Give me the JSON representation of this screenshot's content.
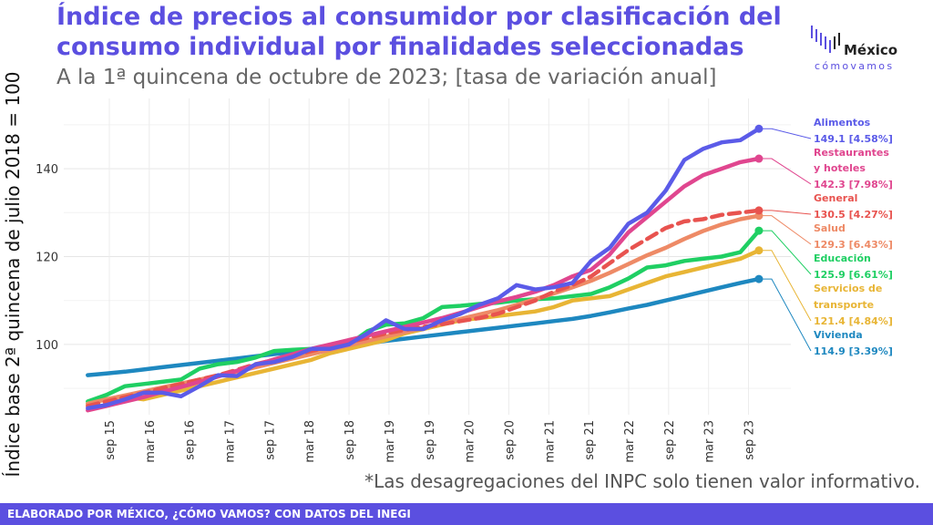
{
  "title": "Índice de precios al consumidor por clasificación del consumo individual por finalidades seleccionadas",
  "subtitle": "A la 1ª quincena de octubre de 2023; [tasa de variación anual]",
  "footnote": "*Las desagregaciones del INPC solo tienen valor informativo.",
  "footer": "ELABORADO POR MÉXICO, ¿CÓMO VAMOS? CON DATOS DEL INEGI",
  "logo": {
    "name": "México",
    "sub": "cómovamos",
    "icon": "bars-logo-icon",
    "colors": [
      "#5B4FE0",
      "#222222"
    ]
  },
  "chart_data": {
    "type": "line",
    "ylabel": "Índice base 2ª quincena de julio 2018 = 100",
    "xlabel": "",
    "x_start": 2015.4,
    "x_end": 2023.8,
    "xlim": [
      2015.1,
      2024.2
    ],
    "ylim": [
      84,
      156
    ],
    "yticks": [
      100,
      120,
      140
    ],
    "xticks": [
      {
        "label": "sep 15",
        "x": 2015.67
      },
      {
        "label": "mar 16",
        "x": 2016.17
      },
      {
        "label": "sep 16",
        "x": 2016.67
      },
      {
        "label": "mar 17",
        "x": 2017.17
      },
      {
        "label": "sep 17",
        "x": 2017.67
      },
      {
        "label": "mar 18",
        "x": 2018.17
      },
      {
        "label": "sep 18",
        "x": 2018.67
      },
      {
        "label": "mar 19",
        "x": 2019.17
      },
      {
        "label": "sep 19",
        "x": 2019.67
      },
      {
        "label": "mar 20",
        "x": 2020.17
      },
      {
        "label": "sep 20",
        "x": 2020.67
      },
      {
        "label": "mar 21",
        "x": 2021.17
      },
      {
        "label": "sep 21",
        "x": 2021.67
      },
      {
        "label": "mar 22",
        "x": 2022.17
      },
      {
        "label": "sep 22",
        "x": 2022.67
      },
      {
        "label": "mar 23",
        "x": 2023.17
      },
      {
        "label": "sep 23",
        "x": 2023.67
      }
    ],
    "grid": true,
    "legend": "direct-labels-right",
    "series": [
      {
        "name": "Alimentos",
        "value_label": "149.1 [4.58%]",
        "color": "#5B5BE8",
        "dashed": false,
        "values": [
          85.5,
          86.2,
          87.5,
          89.0,
          89.0,
          88.2,
          90.5,
          93.0,
          92.8,
          95.5,
          96.0,
          97.2,
          99.0,
          99.0,
          100.0,
          102.5,
          105.5,
          103.5,
          103.5,
          105.5,
          107.0,
          109.0,
          110.5,
          113.5,
          112.5,
          113.0,
          114.0,
          119.0,
          122.0,
          127.5,
          130.0,
          135.0,
          142.0,
          144.5,
          146.0,
          146.5,
          149.1
        ]
      },
      {
        "name": "Restaurantes y hoteles",
        "value_label": "142.3 [7.98%]",
        "color": "#E0468F",
        "dashed": false,
        "values": [
          85.0,
          86.0,
          87.0,
          88.0,
          89.2,
          90.3,
          91.5,
          92.7,
          94.0,
          95.3,
          96.6,
          97.8,
          99.0,
          100.0,
          101.0,
          102.0,
          103.0,
          104.0,
          105.0,
          106.0,
          107.2,
          108.5,
          109.8,
          110.8,
          112.0,
          113.5,
          115.5,
          117.0,
          120.5,
          125.5,
          129.0,
          132.5,
          136.0,
          138.5,
          140.0,
          141.5,
          142.3
        ]
      },
      {
        "name": "General",
        "value_label": "130.5 [4.27%]",
        "color": "#E8534F",
        "dashed": true,
        "values": [
          86.0,
          87.0,
          88.0,
          89.0,
          90.0,
          91.0,
          92.0,
          93.0,
          94.2,
          95.5,
          96.5,
          97.5,
          98.5,
          99.5,
          100.5,
          101.5,
          102.5,
          103.3,
          104.0,
          104.6,
          105.3,
          106.0,
          107.0,
          108.5,
          110.0,
          112.0,
          113.5,
          115.5,
          118.5,
          121.5,
          124.0,
          126.5,
          128.0,
          128.5,
          129.5,
          130.0,
          130.5
        ]
      },
      {
        "name": "Salud",
        "value_label": "129.3 [6.43%]",
        "color": "#EE8A66",
        "dashed": false,
        "values": [
          86.5,
          87.5,
          88.4,
          89.3,
          90.2,
          91.1,
          92.0,
          92.9,
          93.8,
          94.8,
          95.8,
          96.8,
          97.8,
          98.8,
          99.8,
          100.8,
          101.8,
          102.8,
          103.8,
          104.8,
          105.8,
          106.8,
          107.8,
          109.0,
          110.3,
          111.6,
          113.0,
          114.5,
          116.3,
          118.3,
          120.3,
          122.0,
          124.0,
          125.8,
          127.3,
          128.5,
          129.3
        ]
      },
      {
        "name": "Educación",
        "value_label": "125.9 [6.61%]",
        "color": "#1FCF63",
        "dashed": false,
        "values": [
          87.0,
          88.5,
          90.5,
          91.0,
          91.5,
          92.0,
          94.5,
          95.5,
          96.0,
          97.0,
          98.5,
          98.8,
          99.0,
          99.5,
          100.0,
          103.0,
          104.5,
          104.8,
          106.0,
          108.5,
          108.8,
          109.2,
          109.5,
          110.0,
          110.3,
          110.5,
          111.0,
          111.5,
          113.0,
          115.0,
          117.5,
          118.0,
          119.0,
          119.5,
          120.0,
          121.0,
          125.9
        ]
      },
      {
        "name": "Servicios de transporte",
        "value_label": "121.4 [4.84%]",
        "color": "#E8B535",
        "dashed": false,
        "values": [
          86.5,
          87.5,
          88.0,
          87.5,
          88.5,
          89.5,
          90.5,
          91.5,
          92.5,
          93.5,
          94.5,
          95.5,
          96.5,
          98.0,
          99.0,
          100.0,
          101.0,
          102.5,
          103.5,
          104.5,
          105.5,
          106.0,
          106.5,
          107.0,
          107.5,
          108.5,
          110.0,
          110.5,
          111.0,
          112.5,
          114.0,
          115.5,
          116.5,
          117.5,
          118.5,
          119.5,
          121.4
        ]
      },
      {
        "name": "Vivienda",
        "value_label": "114.9 [3.39%]",
        "color": "#1E88C0",
        "dashed": false,
        "values": [
          93.0,
          93.4,
          93.8,
          94.3,
          94.8,
          95.3,
          95.8,
          96.3,
          96.8,
          97.3,
          97.8,
          98.3,
          98.8,
          99.3,
          99.8,
          100.3,
          100.8,
          101.3,
          101.8,
          102.3,
          102.8,
          103.3,
          103.8,
          104.3,
          104.8,
          105.3,
          105.8,
          106.5,
          107.3,
          108.2,
          109.0,
          110.0,
          111.0,
          112.0,
          113.0,
          114.0,
          114.9
        ]
      }
    ]
  }
}
